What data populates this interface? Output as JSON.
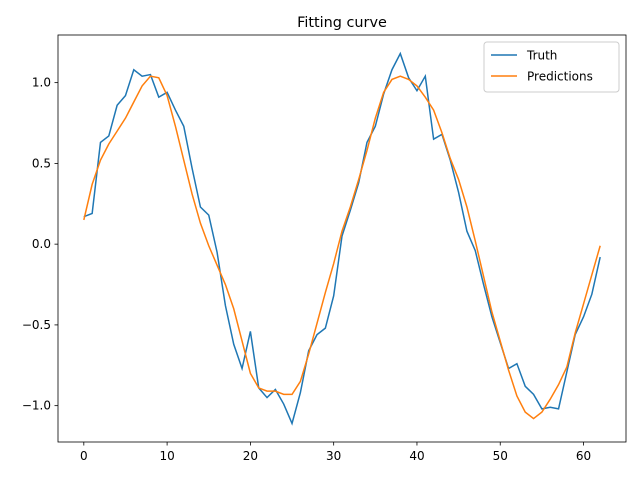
{
  "chart_data": {
    "type": "line",
    "title": "Fitting curve",
    "x": [
      0,
      1,
      2,
      3,
      4,
      5,
      6,
      7,
      8,
      9,
      10,
      11,
      12,
      13,
      14,
      15,
      16,
      17,
      18,
      19,
      20,
      21,
      22,
      23,
      24,
      25,
      26,
      27,
      28,
      29,
      30,
      31,
      32,
      33,
      34,
      35,
      36,
      37,
      38,
      39,
      40,
      41,
      42,
      43,
      44,
      45,
      46,
      47,
      48,
      49,
      50,
      51,
      52,
      53,
      54,
      55,
      56,
      57,
      58,
      59,
      60,
      61,
      62
    ],
    "series": [
      {
        "name": "Truth",
        "color": "#1f77b4",
        "values": [
          0.17,
          0.19,
          0.63,
          0.67,
          0.86,
          0.92,
          1.08,
          1.04,
          1.05,
          0.91,
          0.94,
          0.83,
          0.73,
          0.47,
          0.23,
          0.18,
          -0.05,
          -0.38,
          -0.62,
          -0.77,
          -0.54,
          -0.89,
          -0.95,
          -0.9,
          -0.99,
          -1.11,
          -0.92,
          -0.66,
          -0.56,
          -0.52,
          -0.32,
          0.05,
          0.21,
          0.38,
          0.63,
          0.73,
          0.93,
          1.08,
          1.18,
          1.03,
          0.95,
          1.04,
          0.65,
          0.68,
          0.52,
          0.32,
          0.08,
          -0.04,
          -0.25,
          -0.45,
          -0.61,
          -0.77,
          -0.74,
          -0.88,
          -0.93,
          -1.02,
          -1.01,
          -1.02,
          -0.79,
          -0.56,
          -0.45,
          -0.31,
          -0.08
        ]
      },
      {
        "name": "Predictions",
        "color": "#ff7f0e",
        "values": [
          0.15,
          0.37,
          0.52,
          0.62,
          0.7,
          0.78,
          0.88,
          0.98,
          1.04,
          1.03,
          0.92,
          0.73,
          0.52,
          0.31,
          0.13,
          -0.01,
          -0.13,
          -0.25,
          -0.4,
          -0.6,
          -0.8,
          -0.89,
          -0.91,
          -0.91,
          -0.93,
          -0.93,
          -0.85,
          -0.68,
          -0.49,
          -0.3,
          -0.12,
          0.08,
          0.23,
          0.4,
          0.58,
          0.78,
          0.94,
          1.02,
          1.04,
          1.02,
          0.98,
          0.91,
          0.83,
          0.69,
          0.53,
          0.4,
          0.23,
          0.02,
          -0.2,
          -0.42,
          -0.6,
          -0.78,
          -0.94,
          -1.04,
          -1.08,
          -1.04,
          -0.96,
          -0.87,
          -0.76,
          -0.55,
          -0.37,
          -0.19,
          -0.01
        ]
      }
    ],
    "xlim": [
      -3.1,
      65.1
    ],
    "xticks": [
      0,
      10,
      20,
      30,
      40,
      50,
      60
    ],
    "ylim": [
      -1.225,
      1.295
    ],
    "yticks": [
      {
        "value": -1.0,
        "label": "−1.0"
      },
      {
        "value": -0.5,
        "label": "−0.5"
      },
      {
        "value": 0.0,
        "label": "0.0"
      },
      {
        "value": 0.5,
        "label": "0.5"
      },
      {
        "value": 1.0,
        "label": "1.0"
      }
    ],
    "grid": false,
    "legend": "upper right"
  }
}
